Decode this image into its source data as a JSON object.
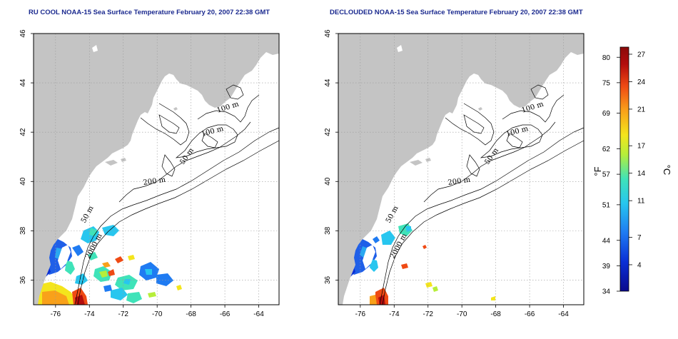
{
  "titles": {
    "left": "RU COOL NOAA-15 Sea Surface Temperature February 20, 2007 22:38 GMT",
    "right": "DECLOUDED NOAA-15 Sea Surface Temperature February 20, 2007 22:38 GMT"
  },
  "axes": {
    "x_ticks": [
      "-76",
      "-74",
      "-72",
      "-70",
      "-68",
      "-66",
      "-64"
    ],
    "x_values": [
      -76,
      -74,
      -72,
      -70,
      -68,
      -66,
      -64
    ],
    "y_ticks": [
      "46",
      "44",
      "42",
      "40",
      "38",
      "36"
    ],
    "y_values": [
      46,
      44,
      42,
      40,
      38,
      36
    ],
    "lon_range": [
      -77.3,
      -62.8
    ],
    "lat_range": [
      35,
      46
    ],
    "grid": "dotted"
  },
  "contours": {
    "labels": [
      "100 m",
      "100 m",
      "50 m",
      "200 m",
      "50 m",
      "2000 m"
    ]
  },
  "colorbar": {
    "fahrenheit_ticks": [
      "80",
      "75",
      "69",
      "62",
      "57",
      "51",
      "44",
      "39",
      "34"
    ],
    "celsius_ticks": [
      "27",
      "24",
      "21",
      "17",
      "14",
      "11",
      "7",
      "4"
    ],
    "unit_f": "°F",
    "unit_c": "°C",
    "colors": [
      "#0b0a8c",
      "#0a2fd6",
      "#1f7bf2",
      "#27c6ef",
      "#3fe3b9",
      "#b6ee3a",
      "#f4e51c",
      "#f9a11a",
      "#ef4a14",
      "#b30d0d",
      "#8a0a0a"
    ]
  },
  "colors": {
    "land": "#c4c4c4",
    "ocean": "#ffffff",
    "title": "#1b2a8f"
  }
}
